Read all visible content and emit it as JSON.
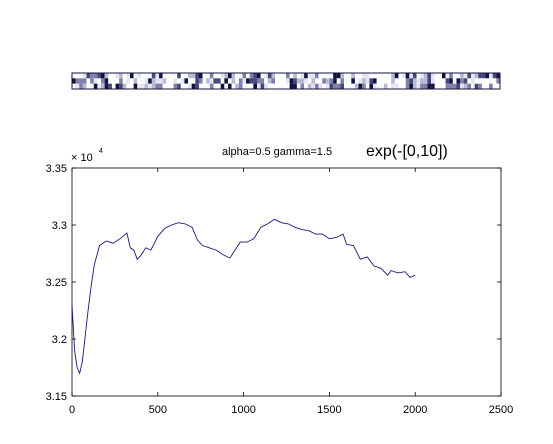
{
  "strip": {
    "rows": 3,
    "cols": 118,
    "palette": [
      "#ffffff",
      "#e4e5ef",
      "#b8b9d2",
      "#7f80aa",
      "#45467a",
      "#12133f"
    ],
    "border_color": "#12133f",
    "seed": 7
  },
  "annotations": {
    "params": "alpha=0.5  gamma=1.5",
    "formula": "exp(-[0,10])",
    "exponent_base": "× 10",
    "exponent_power": "4"
  },
  "chart_data": {
    "type": "line",
    "title": "",
    "xlabel": "",
    "ylabel": "",
    "xlim": [
      0,
      2500
    ],
    "ylim": [
      31500,
      33500
    ],
    "x_ticks": [
      0,
      500,
      1000,
      1500,
      2000,
      2500
    ],
    "y_ticks": [
      31500,
      32000,
      32500,
      33000,
      33500
    ],
    "y_tick_labels": [
      "3.15",
      "3.2",
      "3.25",
      "3.3",
      "3.35"
    ],
    "grid": false,
    "line_color": "#1a1a7a",
    "series": [
      {
        "x": [
          0,
          15,
          30,
          45,
          60,
          75,
          90,
          110,
          130,
          160,
          200,
          240,
          280,
          320,
          340,
          360,
          380,
          400,
          430,
          460,
          500,
          540,
          580,
          620,
          660,
          700,
          730,
          760,
          800,
          840,
          880,
          920,
          950,
          980,
          1020,
          1060,
          1100,
          1140,
          1180,
          1220,
          1260,
          1300,
          1340,
          1380,
          1420,
          1460,
          1500,
          1540,
          1580,
          1600,
          1640,
          1680,
          1720,
          1760,
          1800,
          1840,
          1860,
          1900,
          1940,
          1970,
          2000
        ],
        "y": [
          32300,
          31900,
          31750,
          31700,
          31800,
          32000,
          32200,
          32450,
          32650,
          32820,
          32860,
          32840,
          32880,
          32930,
          32800,
          32780,
          32700,
          32730,
          32800,
          32780,
          32900,
          32970,
          33000,
          33020,
          33010,
          32980,
          32870,
          32820,
          32800,
          32780,
          32740,
          32710,
          32780,
          32850,
          32850,
          32880,
          32980,
          33010,
          33050,
          33020,
          33010,
          32980,
          32960,
          32950,
          32920,
          32920,
          32880,
          32890,
          32920,
          32830,
          32820,
          32700,
          32720,
          32640,
          32620,
          32560,
          32600,
          32580,
          32590,
          32540,
          32560
        ]
      }
    ]
  }
}
